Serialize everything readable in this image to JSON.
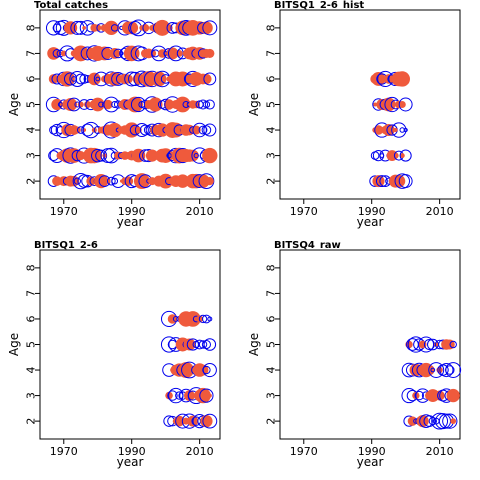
{
  "colors": {
    "positive": "#ef5a3c",
    "negative": "#0000ee",
    "axis": "#000000"
  },
  "chart_data": [
    {
      "type": "scatter",
      "title": "Total catches",
      "xlabel": "year",
      "ylabel": "Age",
      "xticks": [
        "1970",
        "1990",
        "2010"
      ],
      "yticks": [
        "2",
        "3",
        "4",
        "5",
        "6",
        "7",
        "8"
      ],
      "xlim": [
        1963,
        2016
      ],
      "ylim": [
        1.3,
        8.7
      ],
      "years": [
        1967,
        2013
      ],
      "ages": [
        2,
        3,
        4,
        5,
        6,
        7,
        8
      ],
      "seed": 11
    },
    {
      "type": "scatter",
      "title": "BITSQ1_2-6_hist",
      "xlabel": "year",
      "ylabel": "Age",
      "xticks": [
        "1970",
        "1990",
        "2010"
      ],
      "yticks": [
        "2",
        "3",
        "4",
        "5",
        "6",
        "7",
        "8"
      ],
      "xlim": [
        1963,
        2016
      ],
      "ylim": [
        1.3,
        8.7
      ],
      "years": [
        1991,
        2000
      ],
      "ages": [
        2,
        3,
        4,
        5,
        6
      ],
      "seed": 23
    },
    {
      "type": "scatter",
      "title": "BITSQ1_2-6",
      "xlabel": "year",
      "ylabel": "Age",
      "xticks": [
        "1970",
        "1990",
        "2010"
      ],
      "yticks": [
        "2",
        "3",
        "4",
        "5",
        "6",
        "7",
        "8"
      ],
      "xlim": [
        1963,
        2016
      ],
      "ylim": [
        1.3,
        8.7
      ],
      "years": [
        2001,
        2013
      ],
      "ages": [
        2,
        3,
        4,
        5,
        6
      ],
      "seed": 37
    },
    {
      "type": "scatter",
      "title": "BITSQ4_raw",
      "xlabel": "year",
      "ylabel": "Age",
      "xticks": [
        "1970",
        "1990",
        "2010"
      ],
      "yticks": [
        "2",
        "3",
        "4",
        "5",
        "6",
        "7",
        "8"
      ],
      "xlim": [
        1963,
        2016
      ],
      "ylim": [
        1.3,
        8.7
      ],
      "years": [
        2001,
        2014
      ],
      "ages": [
        2,
        3,
        4,
        5
      ],
      "seed": 53
    }
  ]
}
